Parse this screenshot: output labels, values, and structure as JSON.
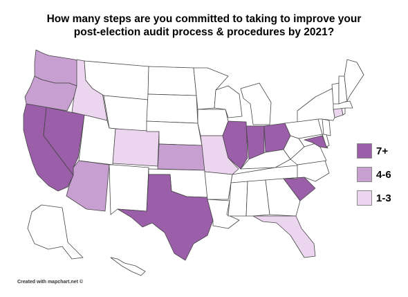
{
  "title": {
    "line1": "How many steps are you committed to taking to improve your",
    "line2": "post-election audit process & procedures by 2021?"
  },
  "legend": [
    {
      "label": "7+",
      "color": "#9b5ea9"
    },
    {
      "label": "4-6",
      "color": "#c79fd1"
    },
    {
      "label": "1-3",
      "color": "#ecd5ef"
    }
  ],
  "categories": {
    "7+": [
      "California",
      "Nevada",
      "Texas",
      "Illinois",
      "Indiana",
      "Ohio",
      "Maryland",
      "South Carolina"
    ],
    "4-6": [
      "Washington",
      "Oregon",
      "Arizona",
      "Kansas"
    ],
    "1-3": [
      "Idaho",
      "Colorado",
      "Missouri",
      "Florida",
      "Connecticut"
    ]
  },
  "colors": {
    "none": "#ffffff",
    "border": "#444444"
  },
  "credit": "Created with mapchart.net ©"
}
